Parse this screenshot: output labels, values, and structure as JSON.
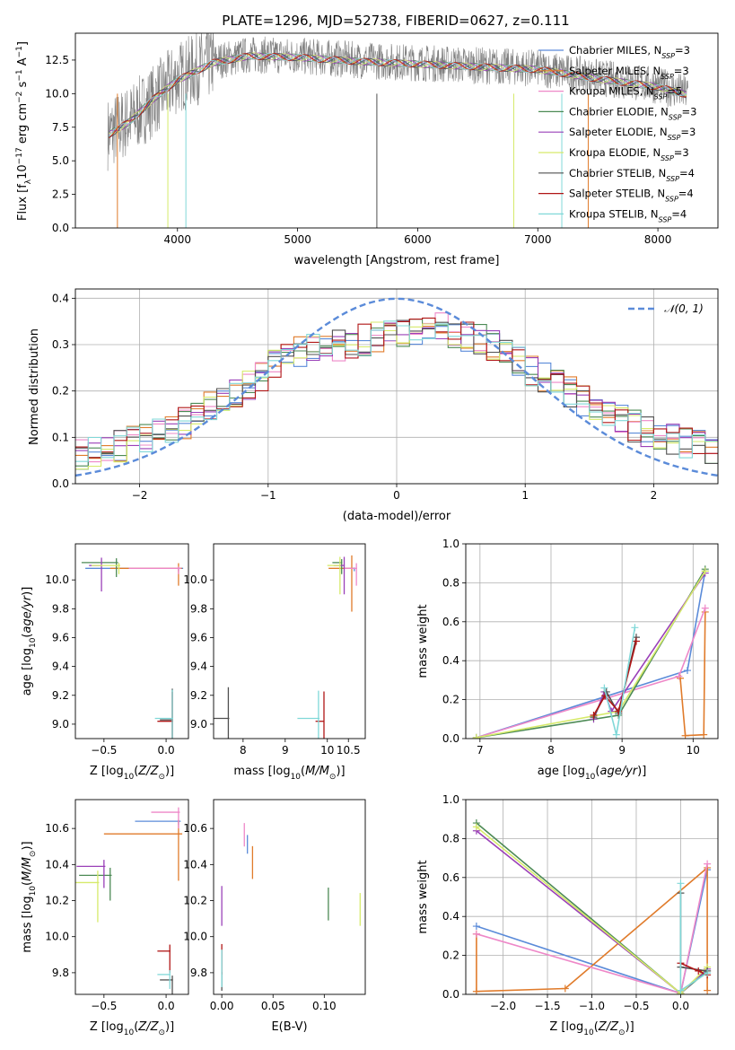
{
  "figure_title": "PLATE=1296, MJD=52738, FIBERID=0627, z=0.111",
  "colors": {
    "Chabrier MILES": "#5b8bd9",
    "Salpeter MILES": "#e07b2b",
    "Kroupa MILES": "#ee88c8",
    "Chabrier ELODIE": "#4c8a55",
    "Salpeter ELODIE": "#9a40b8",
    "Kroupa ELODIE": "#d6ea6a",
    "Chabrier STELIB": "#505050",
    "Salpeter STELIB": "#b01616",
    "Kroupa STELIB": "#80d8d8",
    "data": "#808080",
    "normal": "#5b8bd9"
  },
  "chart_data": [
    {
      "id": "spectrum",
      "type": "line",
      "title": "PLATE=1296, MJD=52738, FIBERID=0627, z=0.111",
      "xlabel": "wavelength [Angstrom, rest frame]",
      "ylabel": "Flux [f_λ 10^-17 erg cm^-2 s^-1 A^-1]",
      "xlim": [
        3150,
        8500
      ],
      "ylim": [
        0,
        14.5
      ],
      "xticks": [
        "4000",
        "5000",
        "6000",
        "7000",
        "8000"
      ],
      "yticks": [
        "0.0",
        "2.5",
        "5.0",
        "7.5",
        "10.0",
        "12.5"
      ],
      "legend_location": "right",
      "legend": [
        "Chabrier MILES, N_SSP=3",
        "Salpeter MILES, N_SSP=3",
        "Kroupa MILES, N_SSP=5",
        "Chabrier ELODIE, N_SSP=3",
        "Salpeter ELODIE, N_SSP=3",
        "Kroupa ELODIE, N_SSP=3",
        "Chabrier STELIB, N_SSP=4",
        "Salpeter STELIB, N_SSP=4",
        "Kroupa STELIB, N_SSP=4"
      ],
      "data_spectrum": {
        "wavelength_range": [
          3420,
          8250
        ],
        "continuum": [
          [
            3420,
            7.0
          ],
          [
            3600,
            8.0
          ],
          [
            3800,
            9.5
          ],
          [
            4000,
            11.2
          ],
          [
            4300,
            12.4
          ],
          [
            4600,
            12.9
          ],
          [
            5000,
            12.8
          ],
          [
            5500,
            12.5
          ],
          [
            6000,
            12.3
          ],
          [
            6500,
            12.1
          ],
          [
            7000,
            11.9
          ],
          [
            7500,
            11.2
          ],
          [
            8000,
            10.6
          ],
          [
            8250,
            10.0
          ]
        ]
      },
      "model_continuum": [
        [
          3420,
          6.9
        ],
        [
          3600,
          7.9
        ],
        [
          3800,
          9.6
        ],
        [
          4000,
          11.0
        ],
        [
          4300,
          12.3
        ],
        [
          4600,
          12.8
        ],
        [
          5000,
          12.7
        ],
        [
          5500,
          12.4
        ],
        [
          6000,
          12.2
        ],
        [
          6500,
          12.0
        ],
        [
          7000,
          11.8
        ],
        [
          7500,
          11.1
        ],
        [
          8000,
          10.5
        ],
        [
          8250,
          9.9
        ]
      ]
    },
    {
      "id": "residuals",
      "type": "histogram",
      "xlabel": "(data-model)/error",
      "ylabel": "Normed distribution",
      "xlim": [
        -2.5,
        2.5
      ],
      "ylim": [
        0,
        0.42
      ],
      "xticks": [
        "−2",
        "−1",
        "0",
        "1",
        "2"
      ],
      "yticks": [
        "0.0",
        "0.1",
        "0.2",
        "0.3",
        "0.4"
      ],
      "grid": true,
      "legend_location": "upper right",
      "legend": [
        "𝒩(0, 1)"
      ],
      "bin_edges_range": [
        -2.5,
        2.5
      ],
      "bin_width": 0.1,
      "mean_profile": [
        0.066,
        0.072,
        0.074,
        0.082,
        0.092,
        0.098,
        0.106,
        0.118,
        0.132,
        0.15,
        0.166,
        0.185,
        0.2,
        0.215,
        0.235,
        0.258,
        0.27,
        0.282,
        0.29,
        0.296,
        0.3,
        0.305,
        0.31,
        0.316,
        0.322,
        0.33,
        0.335,
        0.336,
        0.334,
        0.328,
        0.32,
        0.31,
        0.296,
        0.28,
        0.262,
        0.245,
        0.228,
        0.21,
        0.196,
        0.18,
        0.166,
        0.152,
        0.138,
        0.124,
        0.114,
        0.104,
        0.094,
        0.086,
        0.08,
        0.074
      ]
    },
    {
      "id": "age_vs_Z",
      "type": "scatter",
      "xlabel": "Z [log10(Z/Z⊙)]",
      "ylabel": "age  [log10(age/yr)]",
      "xlim": [
        -0.73,
        0.18
      ],
      "ylim": [
        8.9,
        10.25
      ],
      "xticks": [
        "−0.5",
        "0.0"
      ],
      "yticks": [
        "9.0",
        "9.2",
        "9.4",
        "9.6",
        "9.8",
        "10.0"
      ],
      "points": [
        {
          "model": "Chabrier MILES",
          "x": 0.1,
          "y": 10.08,
          "xerr": 0.75,
          "yerr": 0.02
        },
        {
          "model": "Salpeter MILES",
          "x": 0.1,
          "y": 10.08,
          "xerr": 0.55,
          "yerr": 0.12
        },
        {
          "model": "Kroupa MILES",
          "x": 0.1,
          "y": 10.08,
          "xerr": 0.4,
          "yerr": 0.04
        },
        {
          "model": "Chabrier ELODIE",
          "x": -0.4,
          "y": 10.12,
          "xerr": 0.28,
          "yerr": 0.1
        },
        {
          "model": "Salpeter ELODIE",
          "x": -0.52,
          "y": 10.1,
          "xerr": 0.1,
          "yerr": 0.18
        },
        {
          "model": "Kroupa ELODIE",
          "x": -0.38,
          "y": 10.1,
          "xerr": 0.22,
          "yerr": 0.06
        },
        {
          "model": "Chabrier STELIB",
          "x": 0.05,
          "y": 9.03,
          "xerr": 0.1,
          "yerr": 0.72
        },
        {
          "model": "Salpeter STELIB",
          "x": 0.05,
          "y": 9.02,
          "xerr": 0.12,
          "yerr": 0.68
        },
        {
          "model": "Kroupa STELIB",
          "x": 0.05,
          "y": 9.04,
          "xerr": 0.14,
          "yerr": 0.66
        }
      ]
    },
    {
      "id": "age_vs_mass",
      "type": "scatter",
      "xlabel": "mass [log10(M/M⊙)]",
      "ylabel": "",
      "xlim": [
        7.3,
        10.9
      ],
      "ylim": [
        8.9,
        10.25
      ],
      "xticks": [
        "8",
        "9",
        "10",
        "10.5"
      ],
      "yticks": [
        "9.0",
        "9.2",
        "9.4",
        "9.6",
        "9.8",
        "10.0"
      ],
      "points": [
        {
          "model": "Chabrier MILES",
          "x": 10.64,
          "y": 10.08,
          "xerr": 0.3,
          "yerr": 0.02
        },
        {
          "model": "Salpeter MILES",
          "x": 10.58,
          "y": 10.08,
          "xerr": 0.55,
          "yerr": 0.3
        },
        {
          "model": "Kroupa MILES",
          "x": 10.69,
          "y": 10.08,
          "xerr": 0.3,
          "yerr": 0.12
        },
        {
          "model": "Chabrier ELODIE",
          "x": 10.34,
          "y": 10.12,
          "xerr": 0.22,
          "yerr": 0.08
        },
        {
          "model": "Salpeter ELODIE",
          "x": 10.4,
          "y": 10.1,
          "xerr": 0.25,
          "yerr": 0.2
        },
        {
          "model": "Kroupa ELODIE",
          "x": 10.3,
          "y": 10.1,
          "xerr": 0.3,
          "yerr": 0.2
        },
        {
          "model": "Chabrier STELIB",
          "x": 7.65,
          "y": 9.04,
          "xerr": 0.45,
          "yerr": 0.72
        },
        {
          "model": "Salpeter STELIB",
          "x": 9.92,
          "y": 9.02,
          "xerr": 0.2,
          "yerr": 0.69
        },
        {
          "model": "Kroupa STELIB",
          "x": 9.79,
          "y": 9.04,
          "xerr": 0.5,
          "yerr": 0.64
        }
      ]
    },
    {
      "id": "massweight_vs_age",
      "type": "line",
      "xlabel": "age  [log10(age/yr)]",
      "ylabel": "mass weight",
      "xlim": [
        6.8,
        10.35
      ],
      "ylim": [
        0,
        1.0
      ],
      "xticks": [
        "7",
        "8",
        "9",
        "10"
      ],
      "yticks": [
        "0.0",
        "0.2",
        "0.4",
        "0.6",
        "0.8",
        "1.0"
      ],
      "grid": true,
      "series": [
        {
          "name": "Chabrier MILES",
          "points": [
            [
              6.95,
              0.005
            ],
            [
              9.92,
              0.35
            ],
            [
              10.17,
              0.86
            ]
          ]
        },
        {
          "name": "Salpeter MILES",
          "points": [
            [
              9.82,
              0.31
            ],
            [
              9.89,
              0.015
            ],
            [
              10.15,
              0.02
            ],
            [
              10.17,
              0.65
            ]
          ]
        },
        {
          "name": "Kroupa MILES",
          "points": [
            [
              6.95,
              0.005
            ],
            [
              9.8,
              0.32
            ],
            [
              10.17,
              0.67
            ]
          ]
        },
        {
          "name": "Chabrier ELODIE",
          "points": [
            [
              6.95,
              0.005
            ],
            [
              8.95,
              0.12
            ],
            [
              10.17,
              0.87
            ]
          ]
        },
        {
          "name": "Salpeter ELODIE",
          "points": [
            [
              8.6,
              0.1
            ],
            [
              8.75,
              0.24
            ],
            [
              8.85,
              0.14
            ],
            [
              10.17,
              0.85
            ]
          ]
        },
        {
          "name": "Kroupa ELODIE",
          "points": [
            [
              6.95,
              0.005
            ],
            [
              8.95,
              0.14
            ],
            [
              10.17,
              0.86
            ]
          ]
        },
        {
          "name": "Chabrier STELIB",
          "points": [
            [
              8.6,
              0.11
            ],
            [
              8.78,
              0.24
            ],
            [
              8.95,
              0.13
            ],
            [
              9.2,
              0.52
            ]
          ]
        },
        {
          "name": "Salpeter STELIB",
          "points": [
            [
              8.6,
              0.12
            ],
            [
              8.76,
              0.22
            ],
            [
              8.95,
              0.14
            ],
            [
              9.2,
              0.5
            ]
          ]
        },
        {
          "name": "Kroupa STELIB",
          "points": [
            [
              8.75,
              0.26
            ],
            [
              8.92,
              0.02
            ],
            [
              9.18,
              0.57
            ]
          ]
        }
      ]
    },
    {
      "id": "mass_vs_Z",
      "type": "scatter",
      "xlabel": "Z [log10(Z/Z⊙)]",
      "ylabel": "mass [log10(M/M⊙)]",
      "xlim": [
        -0.73,
        0.18
      ],
      "ylim": [
        9.68,
        10.76
      ],
      "xticks": [
        "−0.5",
        "0.0"
      ],
      "yticks": [
        "9.8",
        "10.0",
        "10.2",
        "10.4",
        "10.6"
      ],
      "points": [
        {
          "model": "Chabrier MILES",
          "x": 0.1,
          "y": 10.64,
          "xerr": 0.35,
          "yerr": 0.02
        },
        {
          "model": "Salpeter MILES",
          "x": 0.1,
          "y": 10.57,
          "xerr": 0.6,
          "yerr": 0.26
        },
        {
          "model": "Kroupa MILES",
          "x": 0.1,
          "y": 10.69,
          "xerr": 0.22,
          "yerr": 0.09
        },
        {
          "model": "Chabrier ELODIE",
          "x": -0.45,
          "y": 10.34,
          "xerr": 0.25,
          "yerr": 0.14
        },
        {
          "model": "Salpeter ELODIE",
          "x": -0.5,
          "y": 10.39,
          "xerr": 0.22,
          "yerr": 0.12
        },
        {
          "model": "Kroupa ELODIE",
          "x": -0.55,
          "y": 10.3,
          "xerr": 0.22,
          "yerr": 0.22
        },
        {
          "model": "Chabrier STELIB",
          "x": 0.05,
          "y": 9.76,
          "xerr": 0.1,
          "yerr": 0.08
        },
        {
          "model": "Salpeter STELIB",
          "x": 0.03,
          "y": 9.92,
          "xerr": 0.1,
          "yerr": 0.12
        },
        {
          "model": "Kroupa STELIB",
          "x": 0.03,
          "y": 9.79,
          "xerr": 0.1,
          "yerr": 0.08
        }
      ]
    },
    {
      "id": "mass_vs_ebv",
      "type": "scatter",
      "xlabel": "E(B-V)",
      "ylabel": "",
      "xlim": [
        -0.008,
        0.14
      ],
      "ylim": [
        9.68,
        10.76
      ],
      "xticks": [
        "0.00",
        "0.05",
        "0.10"
      ],
      "yticks": [
        "9.8",
        "10.0",
        "10.2",
        "10.4",
        "10.6"
      ],
      "points": [
        {
          "model": "Chabrier MILES",
          "x": 0.025,
          "y": 10.54,
          "yerr": 0.08
        },
        {
          "model": "Salpeter MILES",
          "x": 0.03,
          "y": 10.46,
          "yerr": 0.14
        },
        {
          "model": "Kroupa MILES",
          "x": 0.022,
          "y": 10.6,
          "yerr": 0.1
        },
        {
          "model": "Chabrier ELODIE",
          "x": 0.104,
          "y": 10.23,
          "yerr": 0.14
        },
        {
          "model": "Salpeter ELODIE",
          "x": 0.0,
          "y": 10.23,
          "yerr": 0.17
        },
        {
          "model": "Kroupa ELODIE",
          "x": 0.135,
          "y": 10.2,
          "yerr": 0.14
        },
        {
          "model": "Chabrier STELIB",
          "x": 0.0,
          "y": 9.78,
          "yerr": 0.08
        },
        {
          "model": "Salpeter STELIB",
          "x": 0.0,
          "y": 9.92,
          "yerr": 0.13
        },
        {
          "model": "Kroupa STELIB",
          "x": 0.0,
          "y": 9.88,
          "yerr": 0.16
        }
      ]
    },
    {
      "id": "massweight_vs_Z",
      "type": "line",
      "xlabel": "Z [log10(Z/Z⊙)]",
      "ylabel": "mass weight",
      "xlim": [
        -2.42,
        0.42
      ],
      "ylim": [
        0,
        1.0
      ],
      "xticks": [
        "−2.0",
        "−1.5",
        "−1.0",
        "−0.5",
        "0.0"
      ],
      "yticks": [
        "0.0",
        "0.2",
        "0.4",
        "0.6",
        "0.8",
        "1.0"
      ],
      "grid": true,
      "series": [
        {
          "name": "Chabrier MILES",
          "points": [
            [
              -2.3,
              0.35
            ],
            [
              0.0,
              0.005
            ],
            [
              0.3,
              0.64
            ]
          ]
        },
        {
          "name": "Salpeter MILES",
          "points": [
            [
              -2.3,
              0.31
            ],
            [
              -2.3,
              0.015
            ],
            [
              -1.3,
              0.03
            ],
            [
              0.3,
              0.65
            ],
            [
              0.3,
              0.02
            ]
          ]
        },
        {
          "name": "Kroupa MILES",
          "points": [
            [
              -2.3,
              0.31
            ],
            [
              0.0,
              0.005
            ],
            [
              0.3,
              0.67
            ]
          ]
        },
        {
          "name": "Chabrier ELODIE",
          "points": [
            [
              -2.3,
              0.88
            ],
            [
              0.0,
              0.005
            ],
            [
              0.3,
              0.12
            ]
          ]
        },
        {
          "name": "Salpeter ELODIE",
          "points": [
            [
              -2.3,
              0.84
            ],
            [
              0.0,
              0.005
            ],
            [
              0.3,
              0.13
            ]
          ]
        },
        {
          "name": "Kroupa ELODIE",
          "points": [
            [
              -2.3,
              0.86
            ],
            [
              0.0,
              0.005
            ],
            [
              0.3,
              0.14
            ]
          ]
        },
        {
          "name": "Chabrier STELIB",
          "points": [
            [
              0.0,
              0.52
            ],
            [
              0.0,
              0.14
            ],
            [
              0.3,
              0.12
            ]
          ]
        },
        {
          "name": "Salpeter STELIB",
          "points": [
            [
              0.0,
              0.16
            ],
            [
              0.2,
              0.12
            ],
            [
              0.3,
              0.1
            ]
          ]
        },
        {
          "name": "Kroupa STELIB",
          "points": [
            [
              0.0,
              0.57
            ],
            [
              0.0,
              0.02
            ],
            [
              0.3,
              0.11
            ]
          ]
        }
      ]
    }
  ]
}
